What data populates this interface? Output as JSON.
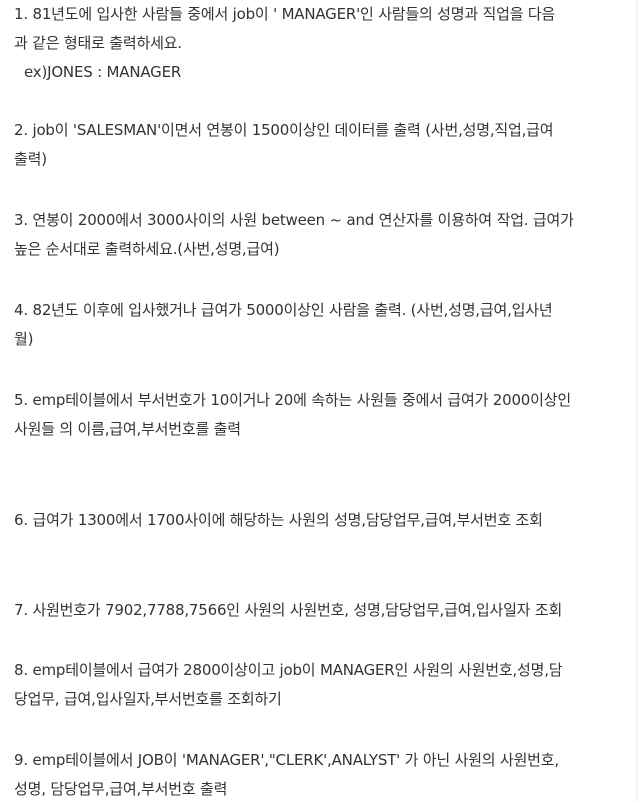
{
  "questions": [
    {
      "lines": [
        "1. 81년도에 입사한 사람들 중에서 job이 ' MANAGER'인 사람들의 성명과 직업을 다음",
        "과 같은  형태로 출력하세요.",
        "ex)JONES : MANAGER"
      ]
    },
    {
      "lines": [
        "2. job이 'SALESMAN'이면서 연봉이 1500이상인 데이터를 출력 (사번,성명,직업,급여",
        "출력)"
      ]
    },
    {
      "lines": [
        "3. 연봉이 2000에서 3000사이의 사원 between ~ and 연산자를 이용하여 작업. 급여가",
        "높은 순서대로 출력하세요.(사번,성명,급여)"
      ]
    },
    {
      "lines": [
        "4. 82년도 이후에 입사했거나 급여가 5000이상인 사람을 출력. (사번,성명,급여,입사년",
        "월)"
      ]
    },
    {
      "lines": [
        "5. emp테이블에서 부서번호가 10이거나 20에 속하는 사원들 중에서 급여가 2000이상인",
        "사원들 의 이름,급여,부서번호를 출력"
      ]
    },
    {
      "lines": [
        "6. 급여가 1300에서 1700사이에 해당하는 사원의 성명,담당업무,급여,부서번호 조회"
      ]
    },
    {
      "lines": [
        "7. 사원번호가 7902,7788,7566인 사원의 사원번호, 성명,담당업무,급여,입사일자 조회"
      ]
    },
    {
      "lines": [
        "8. emp테이블에서 급여가 2800이상이고 job이 MANAGER인 사원의 사원번호,성명,담",
        "당업무,  급여,입사일자,부서번호를 조회하기"
      ]
    },
    {
      "lines": [
        "9. emp테이블에서 JOB이 'MANAGER',\"CLERK',ANALYST' 가 아닌 사원의 사원번호,",
        "성명,  담당업무,급여,부서번호 출력"
      ]
    }
  ]
}
